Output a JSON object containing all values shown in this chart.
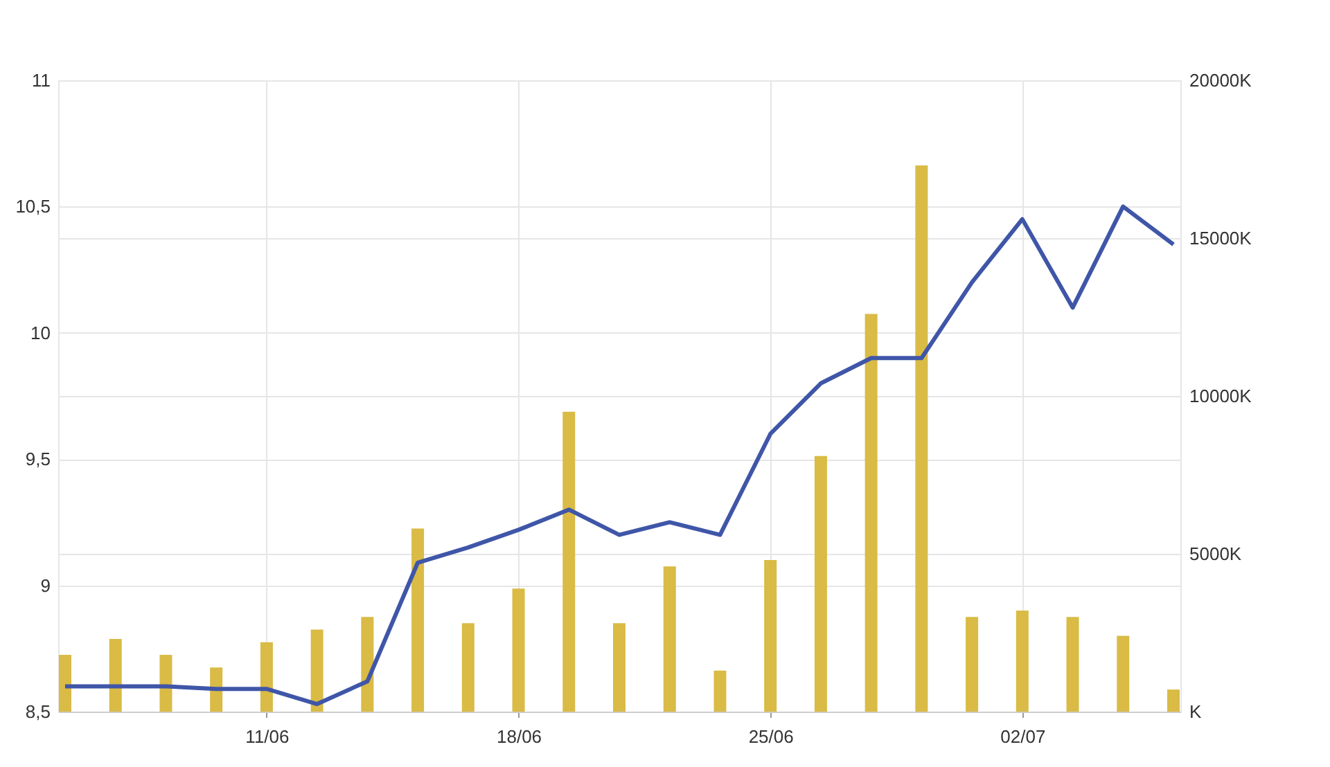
{
  "chart_data": {
    "type": "line",
    "categories": [
      null,
      null,
      null,
      null,
      "11/06",
      null,
      null,
      null,
      null,
      "18/06",
      null,
      null,
      null,
      null,
      "25/06",
      null,
      null,
      null,
      null,
      "02/07",
      null,
      null,
      null
    ],
    "series": [
      {
        "type": "bar",
        "axis": "y2",
        "color": "#d9bb45",
        "values": [
          1800,
          2300,
          1800,
          1400,
          2200,
          2600,
          3000,
          5800,
          2800,
          3900,
          9500,
          2800,
          4600,
          1300,
          4800,
          8100,
          12600,
          17300,
          3000,
          3200,
          3000,
          2400,
          700
        ]
      },
      {
        "color": "#3f56a8",
        "values": [
          8.6,
          8.6,
          8.6,
          8.59,
          8.59,
          8.53,
          8.62,
          9.09,
          9.15,
          9.22,
          9.3,
          9.2,
          9.25,
          9.2,
          9.6,
          9.8,
          9.9,
          9.9,
          10.2,
          10.45,
          10.1,
          10.5,
          10.35
        ]
      }
    ],
    "ylim": [
      8.5,
      11
    ],
    "yticks": [
      {
        "value": 8.5,
        "label": "8,5"
      },
      9,
      {
        "value": 9.5,
        "label": "9,5"
      },
      10,
      {
        "value": 10.5,
        "label": "10,5"
      },
      11
    ],
    "y2lim": [
      0,
      20000
    ],
    "y2ticks": [
      {
        "value": 0,
        "label": "K"
      },
      {
        "value": 5000,
        "label": "5000K"
      },
      {
        "value": 10000,
        "label": "10000K"
      },
      {
        "value": 15000,
        "label": "15000K"
      },
      {
        "value": 20000,
        "label": "20000K"
      }
    ],
    "grid": true
  }
}
